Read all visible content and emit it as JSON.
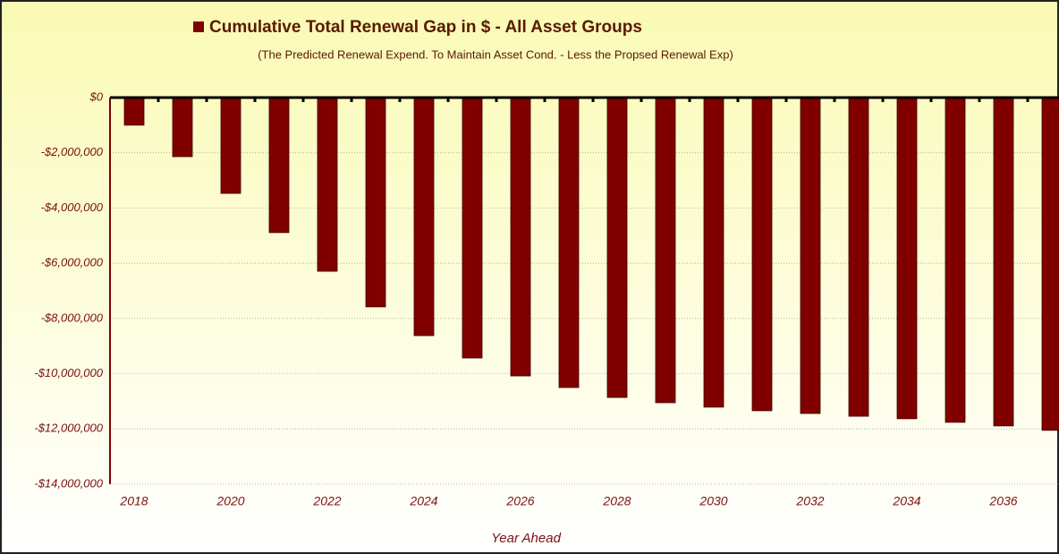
{
  "chart_data": {
    "type": "bar",
    "title": "Cumulative Total Renewal Gap in $ -  All Asset Groups",
    "subtitle": "(The Predicted Renewal Expend. To Maintain Asset Cond. -  Less the Propsed Renewal Exp)",
    "x_label": "Year Ahead",
    "categories": [
      "2018",
      null,
      "2020",
      null,
      "2022",
      null,
      "2024",
      null,
      "2026",
      null,
      "2028",
      null,
      "2030",
      null,
      "2032",
      null,
      "2034",
      null,
      "2036",
      null
    ],
    "series": [
      {
        "name": "Cumulative Total Renewal Gap in $ -  All Asset Groups",
        "color": "#800000",
        "values": [
          -1000000,
          -2140000,
          -3470000,
          -4890000,
          -6290000,
          -7580000,
          -8620000,
          -9430000,
          -10080000,
          -10500000,
          -10860000,
          -11050000,
          -11210000,
          -11340000,
          -11440000,
          -11540000,
          -11630000,
          -11760000,
          -11890000,
          -12050000
        ]
      }
    ],
    "ylim": [
      -14000000,
      0
    ],
    "yticks": [
      {
        "value": 0,
        "label": "$0"
      },
      {
        "value": -2000000,
        "label": "-$2,000,000"
      },
      {
        "value": -4000000,
        "label": "-$4,000,000"
      },
      {
        "value": -6000000,
        "label": "-$6,000,000"
      },
      {
        "value": -8000000,
        "label": "-$8,000,000"
      },
      {
        "value": -10000000,
        "label": "-$10,000,000"
      },
      {
        "value": -12000000,
        "label": "-$12,000,000"
      },
      {
        "value": -14000000,
        "label": "-$14,000,000"
      }
    ],
    "grid": true
  }
}
